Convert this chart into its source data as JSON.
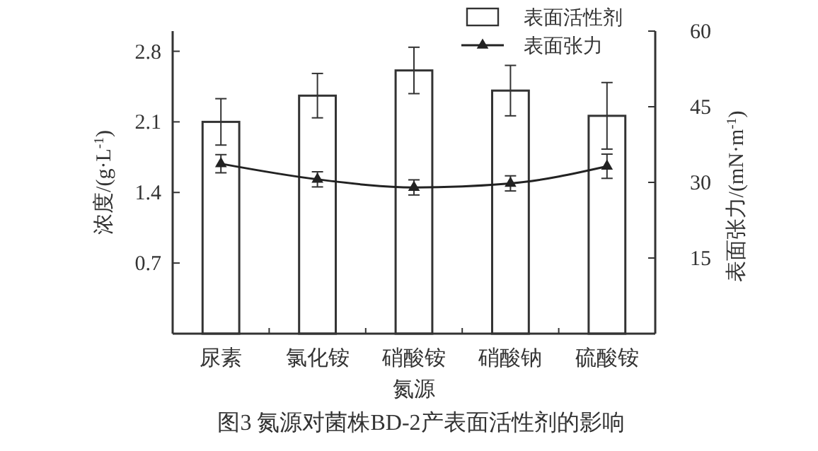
{
  "chart_data": {
    "type": "bar",
    "title": "图3 氮源对菌株BD-2产表面活性剂的影响",
    "xlabel": "氮源",
    "ylabel": "浓度/(g·L$^{-1}$)",
    "y2label": "表面张力/(mN·m$^{-1}$)",
    "categories": [
      "尿素",
      "氯化铵",
      "硝酸铵",
      "硝酸钠",
      "硫酸铵"
    ],
    "series": [
      {
        "name": "表面活性剂",
        "color": "#ffffff",
        "values": [
          2.1,
          2.36,
          2.61,
          2.41,
          2.16
        ],
        "errors": [
          0.23,
          0.22,
          0.23,
          0.25,
          0.33
        ]
      },
      {
        "name": "表面张力",
        "type": "line",
        "axis": "y2",
        "color": "#222222",
        "marker": "triangle",
        "values": [
          33.7,
          30.6,
          29.0,
          29.8,
          33.2
        ],
        "errors": [
          1.8,
          1.5,
          1.5,
          1.5,
          2.4
        ]
      }
    ],
    "ylim": [
      0,
      3.0
    ],
    "yticks": [
      0.7,
      1.4,
      2.1,
      2.8
    ],
    "y2lim": [
      0,
      60
    ],
    "y2ticks": [
      15,
      30,
      45,
      60
    ],
    "legend": "top right",
    "grid": false
  }
}
